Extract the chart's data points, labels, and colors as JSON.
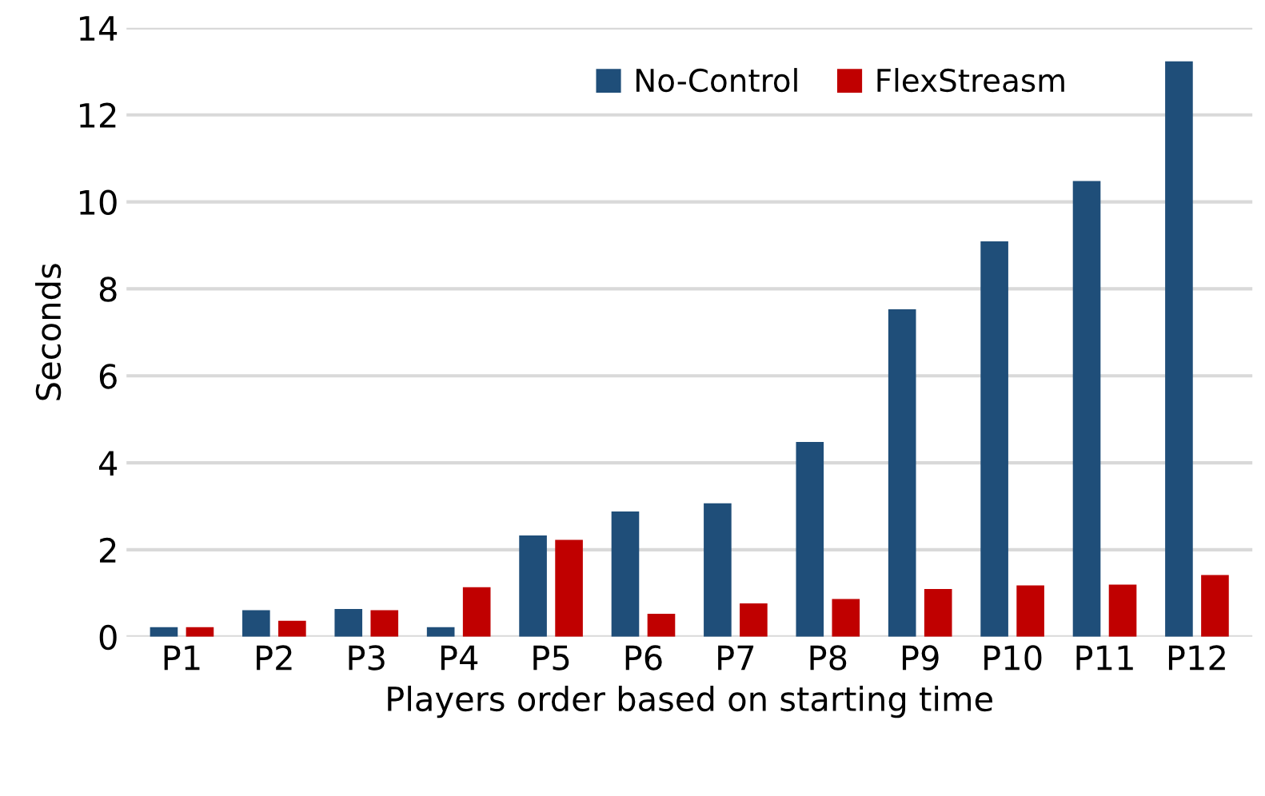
{
  "chart_data": {
    "type": "bar",
    "xlabel": "Players order based on starting time",
    "ylabel": "Seconds",
    "categories": [
      "P1",
      "P2",
      "P3",
      "P4",
      "P5",
      "P6",
      "P7",
      "P8",
      "P9",
      "P10",
      "P11",
      "P12"
    ],
    "series": [
      {
        "name": "No-Control",
        "color": "#1f4e79",
        "values": [
          0.22,
          0.61,
          0.64,
          0.22,
          2.33,
          2.88,
          3.07,
          4.48,
          7.53,
          9.09,
          10.48,
          13.23
        ]
      },
      {
        "name": "FlexStreasm",
        "color": "#c00000",
        "values": [
          0.22,
          0.37,
          0.61,
          1.14,
          2.23,
          0.53,
          0.77,
          0.87,
          1.1,
          1.18,
          1.2,
          1.42
        ]
      }
    ],
    "ylim": [
      0,
      14
    ],
    "yticks": [
      0,
      2,
      4,
      6,
      8,
      10,
      12,
      14
    ],
    "grid": "y",
    "legend": "top right"
  }
}
